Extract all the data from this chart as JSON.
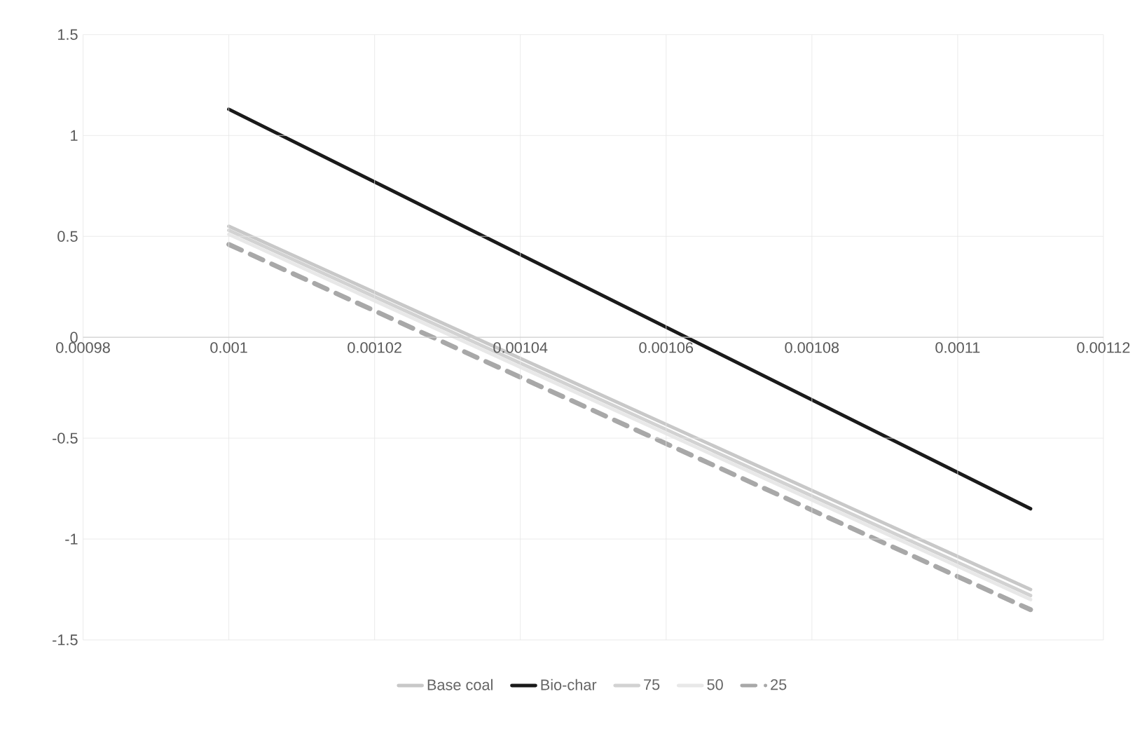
{
  "chart_data": {
    "type": "line",
    "x": [
      0.001,
      0.00111
    ],
    "xlim": [
      0.00098,
      0.00112
    ],
    "xticks": [
      0.00098,
      0.001,
      0.00102,
      0.00104,
      0.00106,
      0.00108,
      0.0011,
      0.00112
    ],
    "ylim": [
      -1.5,
      1.5
    ],
    "yticks": [
      -1.5,
      -1,
      -0.5,
      0,
      0.5,
      1,
      1.5
    ],
    "grid": true,
    "legend": "bottom",
    "marker": "none",
    "series": [
      {
        "name": "Base coal",
        "color": "#c8c8c8",
        "values": [
          0.55,
          -1.25
        ]
      },
      {
        "name": "Bio-char",
        "color": "#1a1a1a",
        "values": [
          1.13,
          -0.85
        ]
      },
      {
        "name": "75",
        "color": "#d2d2d2",
        "values": [
          0.53,
          -1.28
        ]
      },
      {
        "name": "50",
        "color": "#e8e8e8",
        "values": [
          0.51,
          -1.3
        ]
      },
      {
        "name": "25",
        "color": "#a8a8a8",
        "line_style": "dashed",
        "values": [
          0.46,
          -1.35
        ]
      }
    ]
  }
}
